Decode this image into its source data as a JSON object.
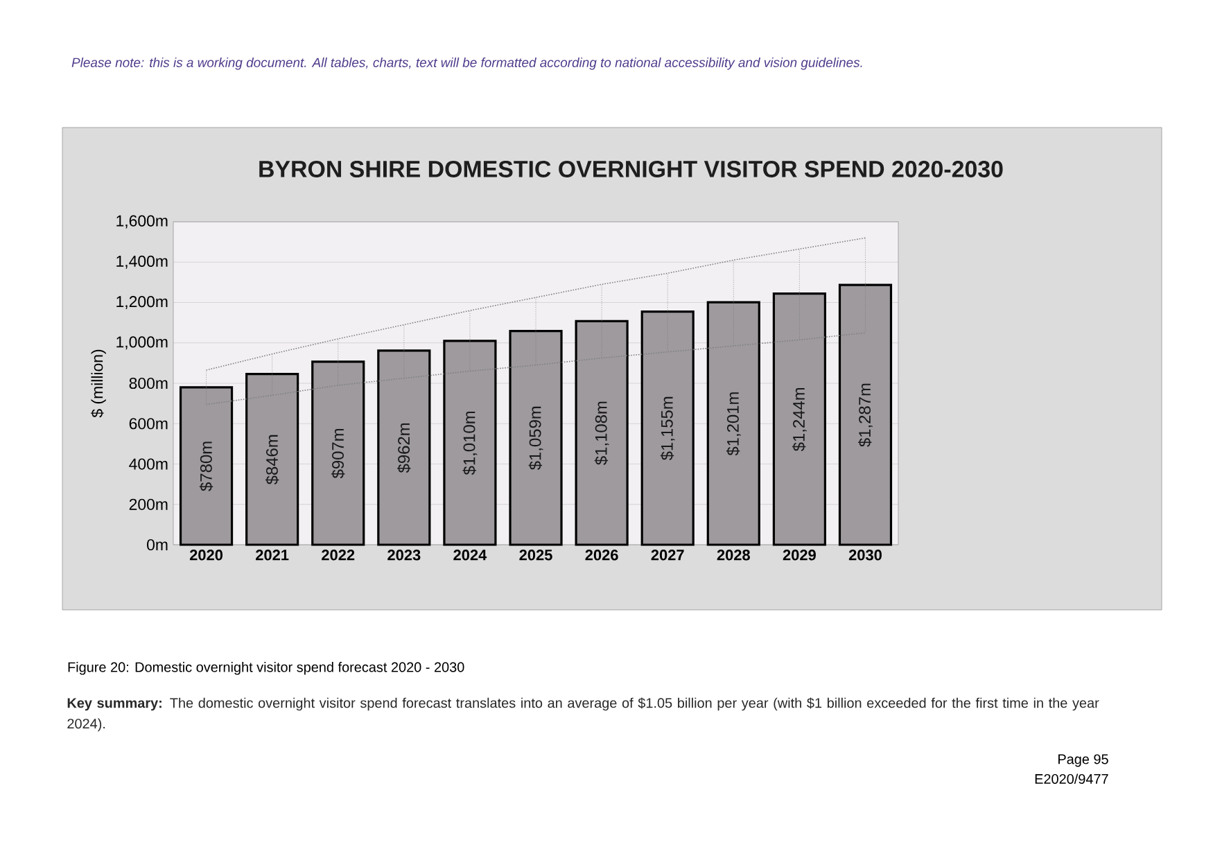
{
  "chart_data": {
    "type": "bar",
    "title": "BYRON SHIRE DOMESTIC OVERNIGHT VISITOR SPEND 2020-2030",
    "ylabel": "$ (million)",
    "categories": [
      "2020",
      "2021",
      "2022",
      "2023",
      "2024",
      "2025",
      "2026",
      "2027",
      "2028",
      "2029",
      "2030"
    ],
    "series": [
      {
        "color": "#9e9a9e",
        "values": [
          780,
          846,
          907,
          962,
          1010,
          1059,
          1108,
          1155,
          1201,
          1244,
          1287
        ],
        "value_labels": [
          "$780m",
          "$846m",
          "$907m",
          "$962m",
          "$1,010m",
          "$1,059m",
          "$1,108m",
          "$1,155m",
          "$1,201m",
          "$1,244m",
          "$1,287m"
        ],
        "errors": [
          [
            695,
            865
          ],
          [
            740,
            945
          ],
          [
            790,
            1020
          ],
          [
            825,
            1090
          ],
          [
            860,
            1160
          ],
          [
            890,
            1225
          ],
          [
            925,
            1290
          ],
          [
            955,
            1345
          ],
          [
            985,
            1410
          ],
          [
            1015,
            1465
          ],
          [
            1050,
            1520
          ]
        ]
      },
      {
        "type": "line",
        "color": "#808080",
        "values": [
          865,
          945,
          1020,
          1090,
          1160,
          1225,
          1290,
          1345,
          1410,
          1465,
          1520
        ]
      },
      {
        "type": "line",
        "color": "#808080",
        "values": [
          695,
          740,
          790,
          825,
          860,
          890,
          925,
          955,
          985,
          1015,
          1050
        ]
      }
    ],
    "ylim": [
      0,
      1600
    ],
    "yticks": [
      {
        "value": 0,
        "label": "0m"
      },
      {
        "value": 200,
        "label": "200m"
      },
      {
        "value": 400,
        "label": "400m"
      },
      {
        "value": 600,
        "label": "600m"
      },
      {
        "value": 800,
        "label": "800m"
      },
      {
        "value": 1000,
        "label": "1,000m"
      },
      {
        "value": 1200,
        "label": "1,200m"
      },
      {
        "value": 1400,
        "label": "1,400m"
      },
      {
        "value": 1600,
        "label": "1,600m"
      }
    ],
    "grid": "y",
    "legend": false,
    "marker": "none",
    "line_style": "dotted",
    "annotations": [
      "Please note: this is a working document. All tables, charts, text will be formatted according to national accessibility and vision guidelines.",
      "Figure 20: Domestic overnight visitor spend forecast 2020 - 2030",
      "**Key summary:** The domestic overnight visitor spend forecast translates into an average of $1.05 billion per year (with $1 billion exceeded for the first time in the year 2024).",
      "Page 95",
      "E2020/9477"
    ]
  }
}
